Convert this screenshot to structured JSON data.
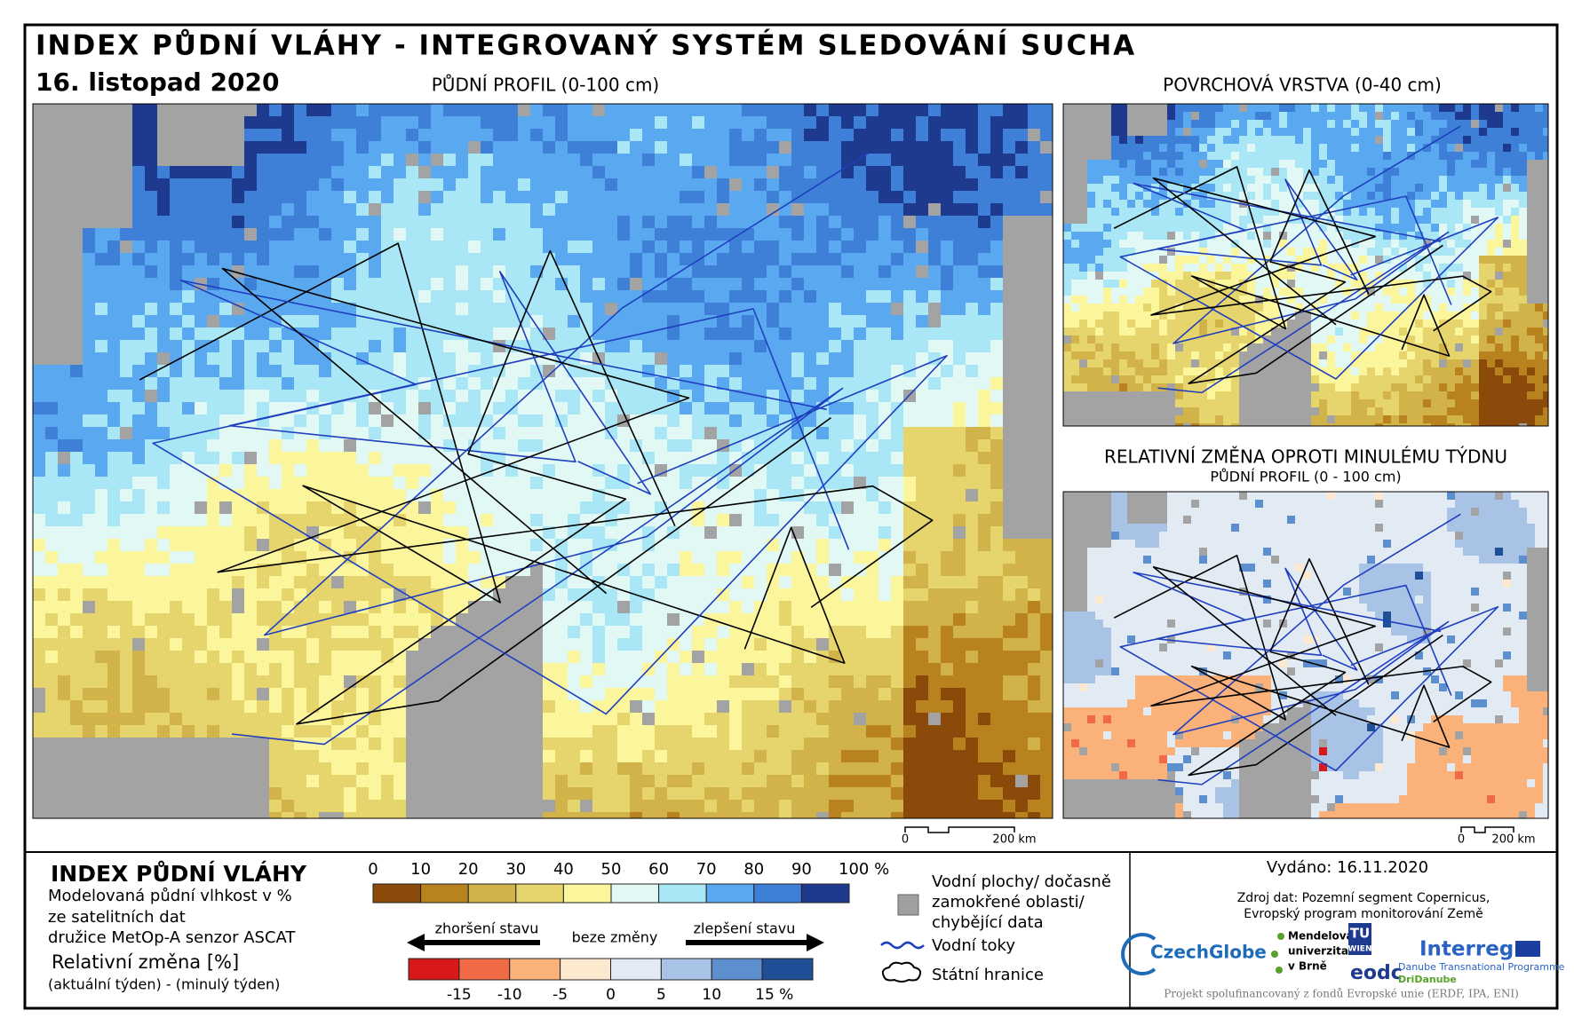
{
  "header": {
    "title": "INDEX PŮDNÍ VLÁHY - INTEGROVANÝ SYSTÉM SLEDOVÁNÍ SUCHA",
    "date": "16. listopad 2020"
  },
  "maps": {
    "main": {
      "title": "PŮDNÍ PROFIL (0-100 cm)",
      "scale_start": "0",
      "scale_end": "200 km"
    },
    "surface": {
      "title": "POVRCHOVÁ VRSTVA (0-40 cm)"
    },
    "change": {
      "title": "RELATIVNÍ ZMĚNA OPROTI MINULÉMU TÝDNU",
      "subtitle": "PŮDNÍ PROFIL (0 - 100 cm)",
      "scale_start": "0",
      "scale_end": "200 km"
    }
  },
  "legend": {
    "title": "INDEX PŮDNÍ VLÁHY",
    "description": [
      "Modelovaná půdní vlhkost v %",
      "ze satelitních dat",
      "družice MetOp-A senzor ASCAT"
    ],
    "change_title": "Relativní změna [%]",
    "change_description": "(aktuální týden) - (minulý týden)",
    "index_scale": {
      "labels": [
        0,
        10,
        20,
        30,
        40,
        50,
        60,
        70,
        80,
        90,
        "100 %"
      ],
      "colors": [
        "#8c4a0a",
        "#b8821e",
        "#d2b34a",
        "#e6d46c",
        "#fbf59c",
        "#e2f8f4",
        "#a9e7f6",
        "#5aa9f0",
        "#3e7fd8",
        "#1d3a8f"
      ]
    },
    "arrows": {
      "worse": "zhoršení stavu",
      "none": "beze změny",
      "better": "zlepšení stavu"
    },
    "change_scale": {
      "labels": [
        -15,
        -10,
        -5,
        0,
        5,
        10,
        "15 %"
      ],
      "colors": [
        "#d7191c",
        "#f06a46",
        "#fbb27a",
        "#fde9cf",
        "#e2eaf4",
        "#a8c3e6",
        "#5d8fcf",
        "#1f4f96"
      ]
    },
    "items": {
      "water": [
        "Vodní plochy/ dočasně",
        "zamokřené oblasti/",
        "chybějící data"
      ],
      "rivers": "Vodní toky",
      "borders": "Státní hranice"
    }
  },
  "info": {
    "issued": "Vydáno: 16.11.2020",
    "source": [
      "Zdroj dat: Pozemní segment Copernicus,",
      "Evropský program monitorování Země"
    ],
    "logos": {
      "czechglobe": "CzechGlobe",
      "mendel": [
        "Mendelova",
        "univerzita",
        "v Brně"
      ],
      "tu": [
        "TU",
        "WIEN"
      ],
      "eodc": "eodc",
      "interreg": "Interreg",
      "danube": "Danube Transnational Programme",
      "dridanube": "DriDanube"
    },
    "footer": "Projekt spolufinancovaný z fondů Evropské unie (ERDF, IPA, ENI)"
  }
}
